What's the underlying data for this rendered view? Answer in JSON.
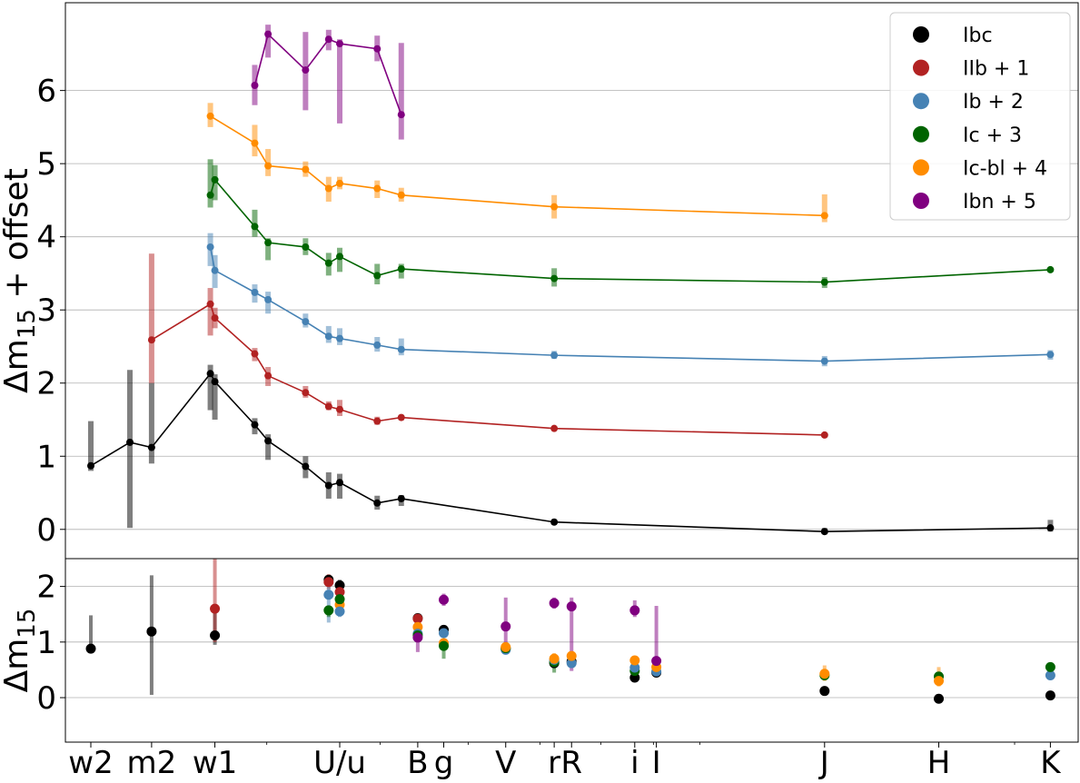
{
  "chart_data": [
    {
      "type": "line",
      "ylabel": "Δm15 + offset",
      "ylim": [
        -0.4,
        7.2
      ],
      "yticks": [
        "0",
        "1",
        "2",
        "3",
        "4",
        "5",
        "6"
      ],
      "grid": "horizontal",
      "legend_position": "top-right",
      "legend": [
        {
          "label": "Ibc",
          "color": "#000000"
        },
        {
          "label": "IIb + 1",
          "color": "#b22222"
        },
        {
          "label": "Ib + 2",
          "color": "#4682b4"
        },
        {
          "label": "Ic + 3",
          "color": "#006400"
        },
        {
          "label": "Ic-bl + 4",
          "color": "#ff8c00"
        },
        {
          "label": "Ibn + 5",
          "color": "#800080"
        }
      ],
      "series": [
        {
          "color": "#000000",
          "points": [
            {
              "x": 192,
              "y": 0.87,
              "lo": 0.8,
              "hi": 1.48
            },
            {
              "x": 212,
              "y": 1.19,
              "lo": 0.02,
              "hi": 2.18
            },
            {
              "x": 224,
              "y": 1.12,
              "lo": 0.9,
              "hi": 2.0
            },
            {
              "x": 260,
              "y": 2.13,
              "lo": 1.63,
              "hi": 2.25
            },
            {
              "x": 263,
              "y": 2.02,
              "lo": 1.5,
              "hi": 2.12
            },
            {
              "x": 291,
              "y": 1.43,
              "lo": 1.3,
              "hi": 1.52
            },
            {
              "x": 301,
              "y": 1.21,
              "lo": 0.95,
              "hi": 1.3
            },
            {
              "x": 331,
              "y": 0.86,
              "lo": 0.7,
              "hi": 1.0
            },
            {
              "x": 351,
              "y": 0.6,
              "lo": 0.42,
              "hi": 0.78
            },
            {
              "x": 361,
              "y": 0.64,
              "lo": 0.42,
              "hi": 0.76
            },
            {
              "x": 397,
              "y": 0.36,
              "lo": 0.27,
              "hi": 0.46
            },
            {
              "x": 422,
              "y": 0.42,
              "lo": 0.32,
              "hi": 0.47
            },
            {
              "x": 622,
              "y": 0.1,
              "lo": 0.07,
              "hi": 0.14
            },
            {
              "x": 1235,
              "y": -0.03,
              "lo": -0.07,
              "hi": 0.02
            },
            {
              "x": 2190,
              "y": 0.02,
              "lo": -0.03,
              "hi": 0.13
            }
          ]
        },
        {
          "color": "#b22222",
          "points": [
            {
              "x": 224,
              "y": 2.59,
              "lo": 2.0,
              "hi": 3.77
            },
            {
              "x": 260,
              "y": 3.08,
              "lo": 2.65,
              "hi": 3.3
            },
            {
              "x": 263,
              "y": 2.89,
              "lo": 2.75,
              "hi": 3.03
            },
            {
              "x": 291,
              "y": 2.4,
              "lo": 2.3,
              "hi": 2.48
            },
            {
              "x": 301,
              "y": 2.1,
              "lo": 1.96,
              "hi": 2.22
            },
            {
              "x": 331,
              "y": 1.87,
              "lo": 1.8,
              "hi": 1.96
            },
            {
              "x": 351,
              "y": 1.68,
              "lo": 1.63,
              "hi": 1.75
            },
            {
              "x": 361,
              "y": 1.64,
              "lo": 1.55,
              "hi": 1.77
            },
            {
              "x": 397,
              "y": 1.48,
              "lo": 1.43,
              "hi": 1.54
            },
            {
              "x": 422,
              "y": 1.53,
              "lo": 1.49,
              "hi": 1.56
            },
            {
              "x": 622,
              "y": 1.38,
              "lo": 1.35,
              "hi": 1.41
            },
            {
              "x": 1235,
              "y": 1.29,
              "lo": 1.26,
              "hi": 1.32
            }
          ]
        },
        {
          "color": "#4682b4",
          "points": [
            {
              "x": 260,
              "y": 3.86,
              "lo": 3.6,
              "hi": 4.05
            },
            {
              "x": 263,
              "y": 3.54,
              "lo": 3.3,
              "hi": 3.75
            },
            {
              "x": 291,
              "y": 3.24,
              "lo": 3.1,
              "hi": 3.35
            },
            {
              "x": 301,
              "y": 3.14,
              "lo": 2.95,
              "hi": 3.25
            },
            {
              "x": 331,
              "y": 2.84,
              "lo": 2.76,
              "hi": 2.95
            },
            {
              "x": 351,
              "y": 2.64,
              "lo": 2.55,
              "hi": 2.78
            },
            {
              "x": 361,
              "y": 2.61,
              "lo": 2.52,
              "hi": 2.75
            },
            {
              "x": 397,
              "y": 2.52,
              "lo": 2.43,
              "hi": 2.63
            },
            {
              "x": 422,
              "y": 2.46,
              "lo": 2.38,
              "hi": 2.61
            },
            {
              "x": 622,
              "y": 2.38,
              "lo": 2.33,
              "hi": 2.44
            },
            {
              "x": 1235,
              "y": 2.3,
              "lo": 2.23,
              "hi": 2.37
            },
            {
              "x": 2190,
              "y": 2.39,
              "lo": 2.32,
              "hi": 2.45
            }
          ]
        },
        {
          "color": "#006400",
          "points": [
            {
              "x": 260,
              "y": 4.57,
              "lo": 4.4,
              "hi": 5.06
            },
            {
              "x": 263,
              "y": 4.78,
              "lo": 4.5,
              "hi": 4.98
            },
            {
              "x": 291,
              "y": 4.14,
              "lo": 4.0,
              "hi": 4.37
            },
            {
              "x": 301,
              "y": 3.92,
              "lo": 3.68,
              "hi": 3.98
            },
            {
              "x": 331,
              "y": 3.86,
              "lo": 3.75,
              "hi": 3.98
            },
            {
              "x": 351,
              "y": 3.64,
              "lo": 3.47,
              "hi": 3.78
            },
            {
              "x": 361,
              "y": 3.73,
              "lo": 3.52,
              "hi": 3.85
            },
            {
              "x": 397,
              "y": 3.47,
              "lo": 3.35,
              "hi": 3.63
            },
            {
              "x": 422,
              "y": 3.56,
              "lo": 3.43,
              "hi": 3.63
            },
            {
              "x": 622,
              "y": 3.43,
              "lo": 3.32,
              "hi": 3.57
            },
            {
              "x": 1235,
              "y": 3.38,
              "lo": 3.3,
              "hi": 3.45
            },
            {
              "x": 2190,
              "y": 3.55,
              "lo": 3.52,
              "hi": 3.58
            }
          ]
        },
        {
          "color": "#ff8c00",
          "points": [
            {
              "x": 260,
              "y": 5.65,
              "lo": 5.5,
              "hi": 5.83
            },
            {
              "x": 291,
              "y": 5.28,
              "lo": 5.1,
              "hi": 5.53
            },
            {
              "x": 301,
              "y": 4.97,
              "lo": 4.83,
              "hi": 5.2
            },
            {
              "x": 331,
              "y": 4.92,
              "lo": 4.82,
              "hi": 5.03
            },
            {
              "x": 351,
              "y": 4.66,
              "lo": 4.48,
              "hi": 4.82
            },
            {
              "x": 361,
              "y": 4.73,
              "lo": 4.65,
              "hi": 4.82
            },
            {
              "x": 397,
              "y": 4.66,
              "lo": 4.53,
              "hi": 4.77
            },
            {
              "x": 422,
              "y": 4.57,
              "lo": 4.48,
              "hi": 4.67
            },
            {
              "x": 622,
              "y": 4.41,
              "lo": 4.25,
              "hi": 4.57
            },
            {
              "x": 1235,
              "y": 4.29,
              "lo": 4.2,
              "hi": 4.58
            }
          ]
        },
        {
          "color": "#800080",
          "points": [
            {
              "x": 291,
              "y": 6.07,
              "lo": 5.8,
              "hi": 6.35
            },
            {
              "x": 301,
              "y": 6.77,
              "lo": 6.45,
              "hi": 6.9
            },
            {
              "x": 331,
              "y": 6.28,
              "lo": 5.73,
              "hi": 6.8
            },
            {
              "x": 351,
              "y": 6.7,
              "lo": 6.55,
              "hi": 6.83
            },
            {
              "x": 361,
              "y": 6.64,
              "lo": 5.55,
              "hi": 6.7
            },
            {
              "x": 397,
              "y": 6.57,
              "lo": 6.4,
              "hi": 6.75
            },
            {
              "x": 422,
              "y": 5.67,
              "lo": 5.33,
              "hi": 6.65
            }
          ]
        }
      ]
    },
    {
      "type": "scatter",
      "ylabel": "Δm15",
      "ylim": [
        -0.8,
        2.5
      ],
      "yticks": [
        "0",
        "1",
        "2"
      ],
      "grid": "horizontal",
      "xticks": [
        {
          "label": "w2",
          "x": 192
        },
        {
          "label": "m2",
          "x": 224
        },
        {
          "label": "w1",
          "x": 263
        },
        {
          "label": "U/u",
          "x": 361
        },
        {
          "label": "B",
          "x": 440
        },
        {
          "label": "g",
          "x": 470
        },
        {
          "label": "V",
          "x": 550
        },
        {
          "label": "r",
          "x": 622
        },
        {
          "label": "R",
          "x": 650
        },
        {
          "label": "i",
          "x": 763
        },
        {
          "label": "I",
          "x": 806
        },
        {
          "label": "J",
          "x": 1235
        },
        {
          "label": "H",
          "x": 1650
        },
        {
          "label": "K",
          "x": 2190
        }
      ],
      "points": [
        {
          "color": "#000000",
          "x": 192,
          "y": 0.88,
          "lo": 0.82,
          "hi": 1.48
        },
        {
          "color": "#000000",
          "x": 224,
          "y": 1.19,
          "lo": 0.05,
          "hi": 2.2
        },
        {
          "color": "#000000",
          "x": 263,
          "y": 1.12,
          "lo": 0.95,
          "hi": 1.65
        },
        {
          "color": "#b22222",
          "x": 263,
          "y": 1.6,
          "lo": 1.0,
          "hi": 2.5
        },
        {
          "color": "#000000",
          "x": 351,
          "y": 2.12,
          "lo": 2.05,
          "hi": 2.2
        },
        {
          "color": "#b22222",
          "x": 351,
          "y": 2.08,
          "lo": 1.95,
          "hi": 2.22
        },
        {
          "color": "#4682b4",
          "x": 351,
          "y": 1.85,
          "lo": 1.35,
          "hi": 2.05
        },
        {
          "color": "#006400",
          "x": 351,
          "y": 1.57,
          "lo": 1.45,
          "hi": 1.65
        },
        {
          "color": "#000000",
          "x": 361,
          "y": 2.02,
          "lo": 1.95,
          "hi": 2.12
        },
        {
          "color": "#b22222",
          "x": 361,
          "y": 1.9,
          "lo": 1.8,
          "hi": 2.0
        },
        {
          "color": "#ff8c00",
          "x": 361,
          "y": 1.67,
          "lo": 1.6,
          "hi": 1.75
        },
        {
          "color": "#006400",
          "x": 361,
          "y": 1.77,
          "lo": 1.55,
          "hi": 1.9
        },
        {
          "color": "#4682b4",
          "x": 361,
          "y": 1.55,
          "lo": 1.45,
          "hi": 1.62
        },
        {
          "color": "#000000",
          "x": 440,
          "y": 1.43,
          "lo": 1.38,
          "hi": 1.48
        },
        {
          "color": "#b22222",
          "x": 440,
          "y": 1.42,
          "lo": 1.35,
          "hi": 1.48
        },
        {
          "color": "#ff8c00",
          "x": 440,
          "y": 1.27,
          "lo": 1.2,
          "hi": 1.35
        },
        {
          "color": "#4682b4",
          "x": 440,
          "y": 1.15,
          "lo": 1.05,
          "hi": 1.25
        },
        {
          "color": "#006400",
          "x": 440,
          "y": 1.12,
          "lo": 1.02,
          "hi": 1.22
        },
        {
          "color": "#800080",
          "x": 440,
          "y": 1.08,
          "lo": 0.82,
          "hi": 1.3
        },
        {
          "color": "#000000",
          "x": 470,
          "y": 1.22,
          "lo": 1.15,
          "hi": 1.3
        },
        {
          "color": "#4682b4",
          "x": 470,
          "y": 1.16,
          "lo": 1.08,
          "hi": 1.25
        },
        {
          "color": "#ff8c00",
          "x": 470,
          "y": 0.98,
          "lo": 0.9,
          "hi": 1.05
        },
        {
          "color": "#006400",
          "x": 470,
          "y": 0.93,
          "lo": 0.7,
          "hi": 1.05
        },
        {
          "color": "#800080",
          "x": 470,
          "y": 1.76,
          "lo": 1.65,
          "hi": 1.87
        },
        {
          "color": "#000000",
          "x": 550,
          "y": 0.88,
          "lo": 0.8,
          "hi": 0.95
        },
        {
          "color": "#4682b4",
          "x": 550,
          "y": 0.86,
          "lo": 0.8,
          "hi": 0.94
        },
        {
          "color": "#006400",
          "x": 550,
          "y": 0.89,
          "lo": 0.82,
          "hi": 0.96
        },
        {
          "color": "#ff8c00",
          "x": 550,
          "y": 0.91,
          "lo": 0.85,
          "hi": 0.98
        },
        {
          "color": "#800080",
          "x": 550,
          "y": 1.28,
          "lo": 0.95,
          "hi": 1.8
        },
        {
          "color": "#000000",
          "x": 622,
          "y": 0.62,
          "lo": 0.55,
          "hi": 0.7
        },
        {
          "color": "#006400",
          "x": 622,
          "y": 0.64,
          "lo": 0.45,
          "hi": 0.75
        },
        {
          "color": "#4682b4",
          "x": 622,
          "y": 0.68,
          "lo": 0.6,
          "hi": 0.75
        },
        {
          "color": "#ff8c00",
          "x": 622,
          "y": 0.7,
          "lo": 0.62,
          "hi": 0.8
        },
        {
          "color": "#800080",
          "x": 622,
          "y": 1.7,
          "lo": 1.6,
          "hi": 1.8
        },
        {
          "color": "#000000",
          "x": 650,
          "y": 0.65,
          "lo": 0.55,
          "hi": 0.75
        },
        {
          "color": "#4682b4",
          "x": 650,
          "y": 0.62,
          "lo": 0.55,
          "hi": 0.7
        },
        {
          "color": "#ff8c00",
          "x": 650,
          "y": 0.75,
          "lo": 0.68,
          "hi": 0.82
        },
        {
          "color": "#800080",
          "x": 650,
          "y": 1.64,
          "lo": 0.48,
          "hi": 1.8
        },
        {
          "color": "#000000",
          "x": 763,
          "y": 0.36,
          "lo": 0.3,
          "hi": 0.42
        },
        {
          "color": "#006400",
          "x": 763,
          "y": 0.48,
          "lo": 0.4,
          "hi": 0.55
        },
        {
          "color": "#4682b4",
          "x": 763,
          "y": 0.54,
          "lo": 0.46,
          "hi": 0.62
        },
        {
          "color": "#ff8c00",
          "x": 763,
          "y": 0.67,
          "lo": 0.6,
          "hi": 0.73
        },
        {
          "color": "#800080",
          "x": 763,
          "y": 1.57,
          "lo": 1.45,
          "hi": 1.75
        },
        {
          "color": "#000000",
          "x": 806,
          "y": 0.45,
          "lo": 0.4,
          "hi": 0.52
        },
        {
          "color": "#4682b4",
          "x": 806,
          "y": 0.47,
          "lo": 0.4,
          "hi": 0.55
        },
        {
          "color": "#ff8c00",
          "x": 806,
          "y": 0.55,
          "lo": 0.48,
          "hi": 0.62
        },
        {
          "color": "#800080",
          "x": 806,
          "y": 0.66,
          "lo": 0.45,
          "hi": 1.65
        },
        {
          "color": "#000000",
          "x": 1235,
          "y": 0.12,
          "lo": 0.08,
          "hi": 0.16
        },
        {
          "color": "#006400",
          "x": 1235,
          "y": 0.4,
          "lo": 0.32,
          "hi": 0.48
        },
        {
          "color": "#ff8c00",
          "x": 1235,
          "y": 0.43,
          "lo": 0.3,
          "hi": 0.58
        },
        {
          "color": "#000000",
          "x": 1650,
          "y": -0.02,
          "lo": -0.06,
          "hi": 0.03
        },
        {
          "color": "#006400",
          "x": 1650,
          "y": 0.38,
          "lo": 0.3,
          "hi": 0.45
        },
        {
          "color": "#ff8c00",
          "x": 1650,
          "y": 0.3,
          "lo": 0.2,
          "hi": 0.55
        },
        {
          "color": "#000000",
          "x": 2190,
          "y": 0.04,
          "lo": -0.02,
          "hi": 0.12
        },
        {
          "color": "#4682b4",
          "x": 2190,
          "y": 0.4,
          "lo": 0.35,
          "hi": 0.45
        },
        {
          "color": "#006400",
          "x": 2190,
          "y": 0.55,
          "lo": 0.5,
          "hi": 0.6
        }
      ]
    }
  ]
}
